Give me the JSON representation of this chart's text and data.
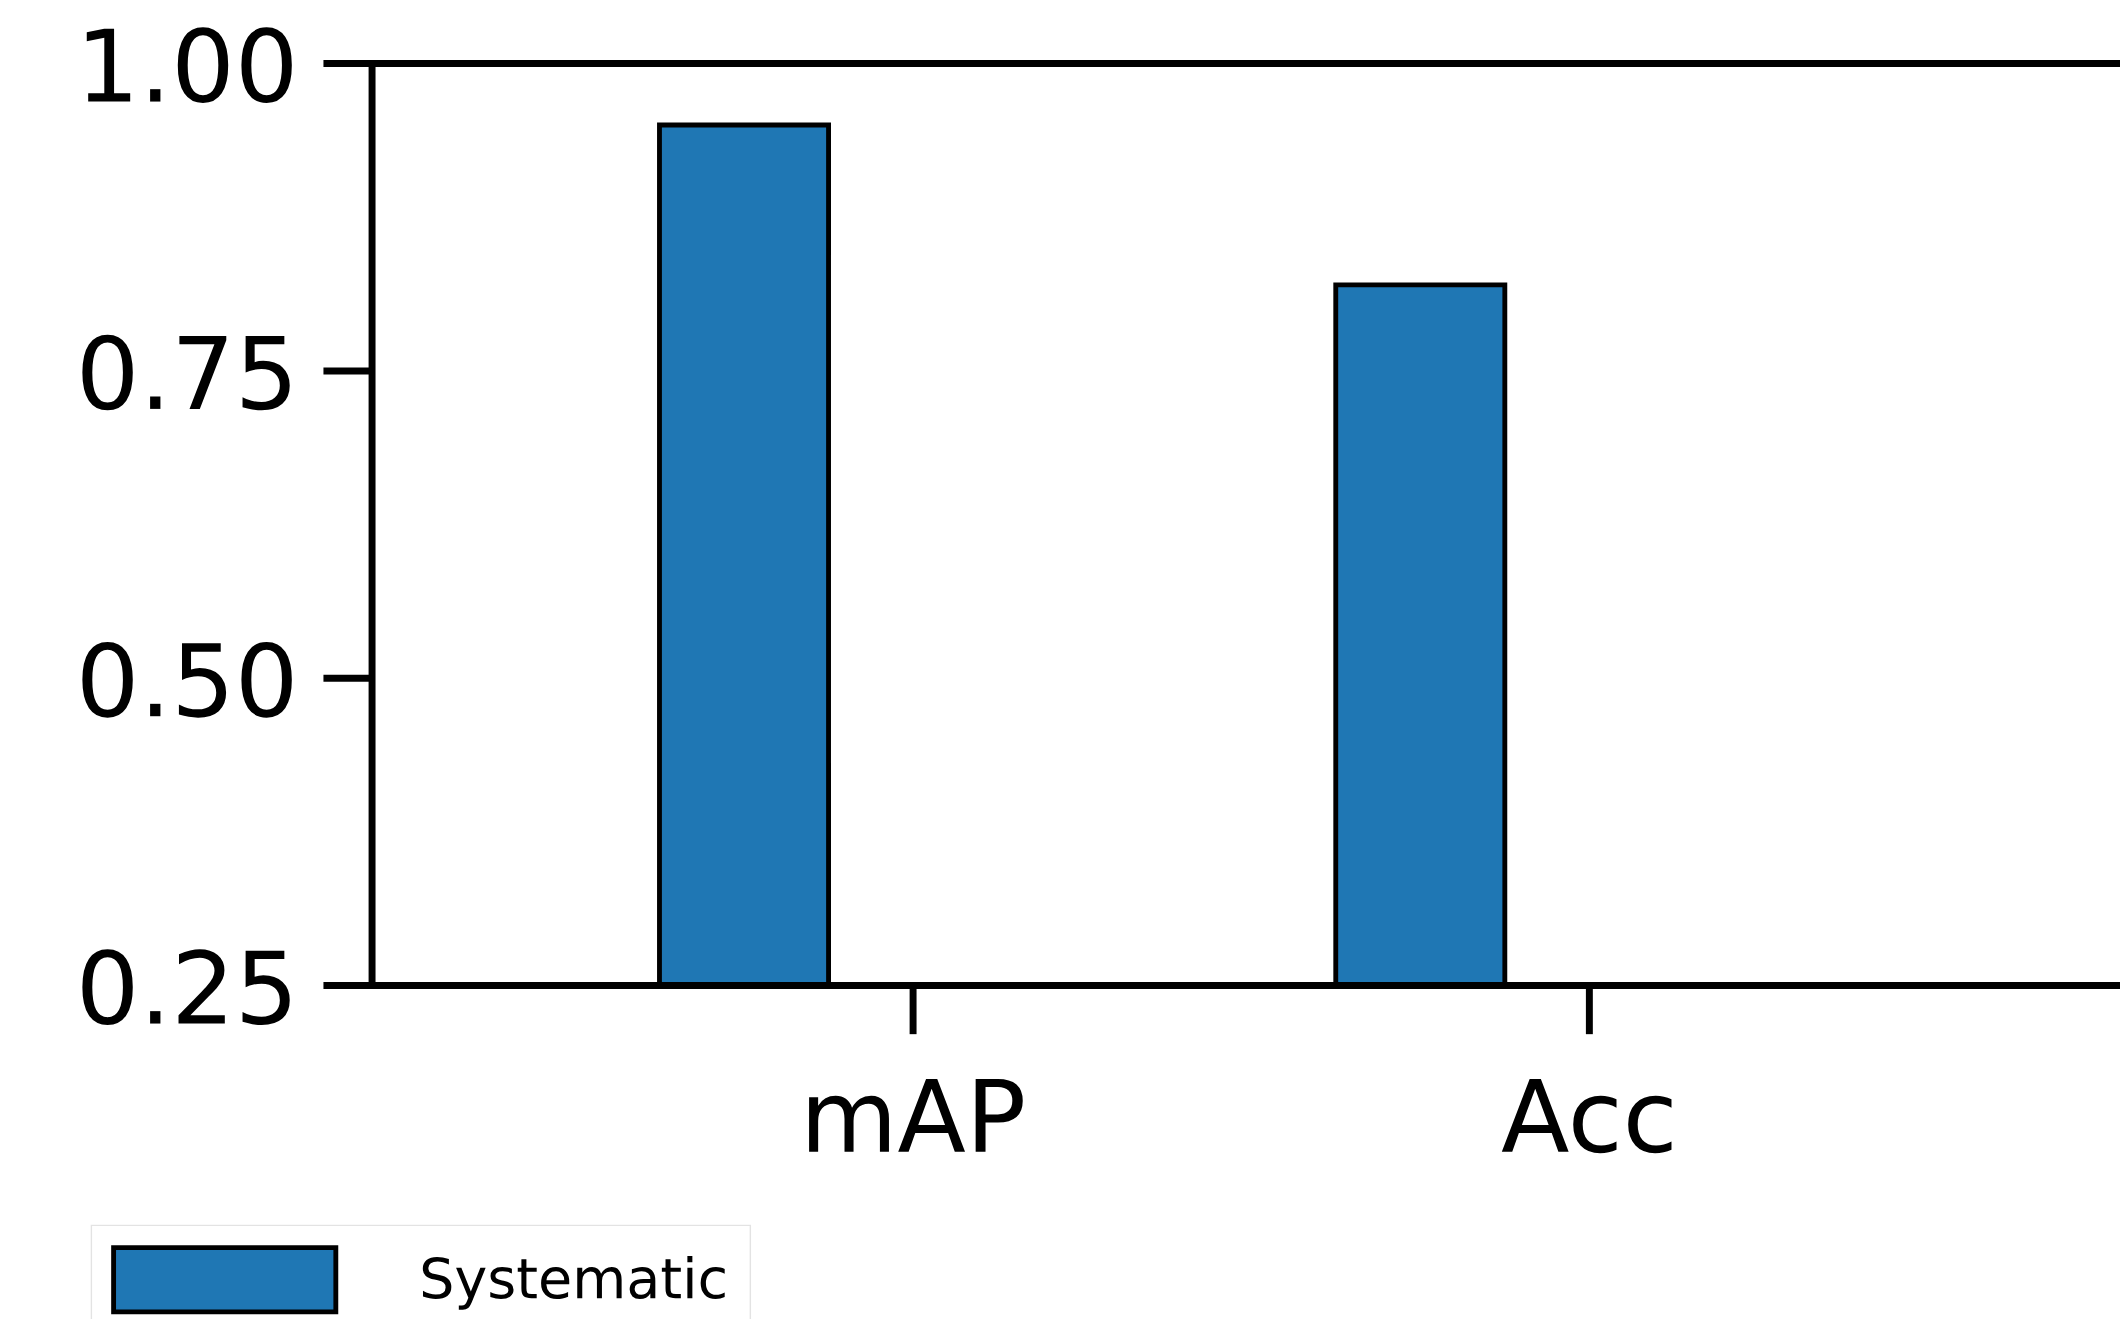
{
  "chart_data": {
    "type": "bar",
    "categories": [
      "mAP",
      "Acc"
    ],
    "series": [
      {
        "name": "Systematic",
        "color": "#1f77b4",
        "values": [
          0.95,
          0.82
        ]
      }
    ],
    "ylim": [
      0.25,
      1.0
    ],
    "yticks": [
      {
        "value": 0.25,
        "label": "0.25"
      },
      {
        "value": 0.5,
        "label": "0.50"
      },
      {
        "value": 0.75,
        "label": "0.75"
      },
      {
        "value": 1.0,
        "label": "1.00"
      }
    ],
    "grid": false,
    "legend": "bottom"
  }
}
